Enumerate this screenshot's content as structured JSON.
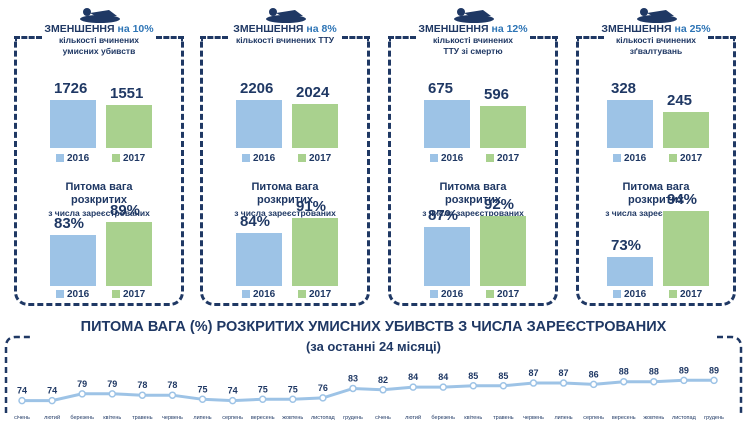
{
  "panels": [
    {
      "h1_prefix": "ЗМЕНШЕННЯ",
      "h1_pct": " на 10%",
      "h2": "кількості вчинених",
      "h3": "умисних убивств",
      "v2016": "1726",
      "v2017": "1551",
      "r2016": "83%",
      "r2017": "89%",
      "icon": "victim-icon"
    },
    {
      "h1_prefix": "ЗМЕНШЕННЯ",
      "h1_pct": " на 8%",
      "h2": "кількості вчинених ТТУ",
      "h3": "",
      "v2016": "2206",
      "v2017": "2024",
      "r2016": "84%",
      "r2017": "91%",
      "icon": "victim-icon"
    },
    {
      "h1_prefix": "ЗМЕНШЕННЯ",
      "h1_pct": " на 12%",
      "h2": "кількості вчинених",
      "h3": "ТТУ зі смертю",
      "v2016": "675",
      "v2017": "596",
      "r2016": "87%",
      "r2017": "92%",
      "icon": "victim-icon"
    },
    {
      "h1_prefix": "ЗМЕНШЕННЯ",
      "h1_pct": " на 25%",
      "h2": "кількості вчинених",
      "h3": "зґвалтувань",
      "v2016": "328",
      "v2017": "245",
      "r2016": "73%",
      "r2017": "94%",
      "icon": "assault-icon"
    }
  ],
  "legend": {
    "y2016": "2016",
    "y2017": "2017"
  },
  "rate_text": {
    "l1": "Питома вага",
    "l2": "розкритих",
    "l3": "з числа зареєстрованих"
  },
  "colors": {
    "bar2016": "#9dc3e6",
    "bar2017": "#a9d18e",
    "line": "#9dc3e6",
    "text": "#1f3864"
  },
  "bottom": {
    "title": "ПИТОМА ВАГА (%) РОЗКРИТИХ УМИСНИХ УБИВСТВ З ЧИСЛА ЗАРЕЄСТРОВАНИХ",
    "subtitle": "(за останні 24 місяці)"
  },
  "chart_data": [
    {
      "type": "bar",
      "categories": [
        "2016",
        "2017"
      ],
      "values": [
        1726,
        1551
      ]
    },
    {
      "type": "bar",
      "categories": [
        "2016",
        "2017"
      ],
      "values": [
        83,
        89
      ]
    },
    {
      "type": "bar",
      "categories": [
        "2016",
        "2017"
      ],
      "values": [
        2206,
        2024
      ]
    },
    {
      "type": "bar",
      "categories": [
        "2016",
        "2017"
      ],
      "values": [
        84,
        91
      ]
    },
    {
      "type": "bar",
      "categories": [
        "2016",
        "2017"
      ],
      "values": [
        675,
        596
      ]
    },
    {
      "type": "bar",
      "categories": [
        "2016",
        "2017"
      ],
      "values": [
        87,
        92
      ]
    },
    {
      "type": "bar",
      "categories": [
        "2016",
        "2017"
      ],
      "values": [
        328,
        245
      ]
    },
    {
      "type": "bar",
      "categories": [
        "2016",
        "2017"
      ],
      "values": [
        73,
        94
      ]
    },
    {
      "type": "line",
      "title": "ПИТОМА ВАГА (%) РОЗКРИТИХ УМИСНИХ УБИВСТВ З ЧИСЛА ЗАРЕЄСТРОВАНИХ",
      "subtitle": "(за останні 24 місяці)",
      "categories": [
        "січень",
        "лютий",
        "березень",
        "квітень",
        "травень",
        "червень",
        "липень",
        "серпень",
        "вересень",
        "жовтень",
        "листопад",
        "грудень",
        "січень",
        "лютий",
        "березень",
        "квітень",
        "травень",
        "червень",
        "липень",
        "серпень",
        "вересень",
        "жовтень",
        "листопад",
        "грудень"
      ],
      "values": [
        74,
        74,
        79,
        79,
        78,
        78,
        75,
        74,
        75,
        75,
        76,
        83,
        82,
        84,
        84,
        85,
        85,
        87,
        87,
        86,
        88,
        88,
        89,
        89
      ],
      "ylim": [
        60,
        100
      ]
    }
  ]
}
